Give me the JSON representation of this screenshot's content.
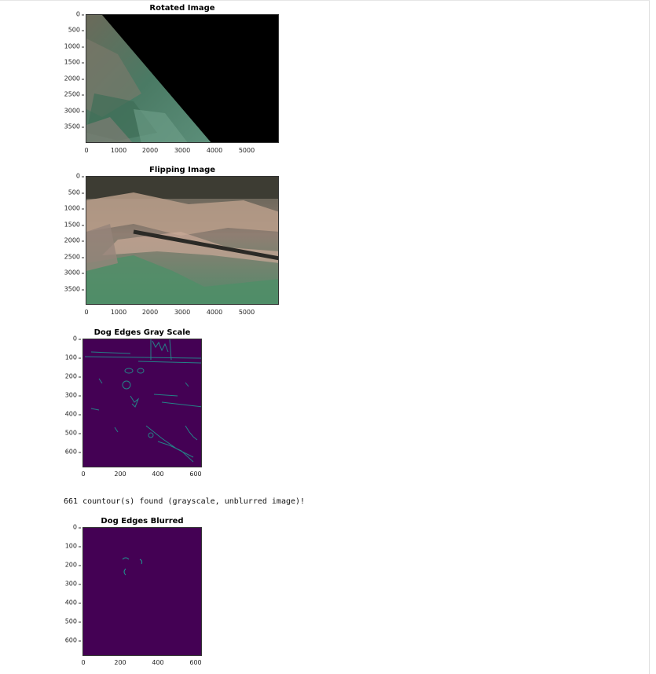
{
  "plots": [
    {
      "id": "rotated",
      "title": "Rotated Image",
      "yticks": [
        "0",
        "500",
        "1000",
        "1500",
        "2000",
        "2500",
        "3000",
        "3500"
      ],
      "xticks": [
        "0",
        "1000",
        "2000",
        "3000",
        "4000",
        "5000"
      ]
    },
    {
      "id": "flipping",
      "title": "Flipping Image",
      "yticks": [
        "0",
        "500",
        "1000",
        "1500",
        "2000",
        "2500",
        "3000",
        "3500"
      ],
      "xticks": [
        "0",
        "1000",
        "2000",
        "3000",
        "4000",
        "5000"
      ]
    },
    {
      "id": "edges-gray",
      "title": "Dog Edges Gray Scale",
      "yticks": [
        "0",
        "100",
        "200",
        "300",
        "400",
        "500",
        "600"
      ],
      "xticks": [
        "0",
        "200",
        "400",
        "600"
      ]
    },
    {
      "id": "edges-blurred",
      "title": "Dog Edges Blurred",
      "yticks": [
        "0",
        "100",
        "200",
        "300",
        "400",
        "500",
        "600"
      ],
      "xticks": [
        "0",
        "200",
        "400",
        "600"
      ]
    }
  ],
  "output_line": "661 countour(s) found (grayscale, unblurred image)!",
  "colors": {
    "viridis_dark": "#440154",
    "viridis_edge": "#21908d",
    "forest_green": "#4f8a6a",
    "image_black": "#000000"
  }
}
